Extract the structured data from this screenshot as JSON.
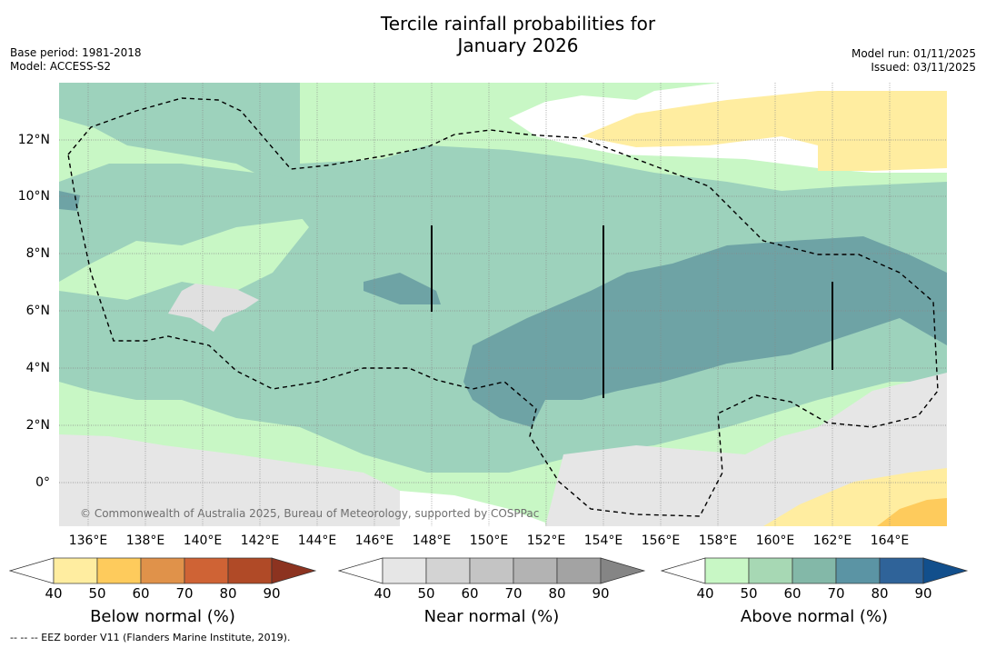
{
  "title_line1": "Tercile rainfall probabilities for",
  "title_line2": "January 2026",
  "base_period": "Base period: 1981-2018",
  "model": "Model: ACCESS-S2",
  "model_run": "Model run: 01/11/2025",
  "issued": "Issued: 03/11/2025",
  "copyright": "© Commonwealth of Australia 2025, Bureau of Meteorology, supported by COSPPac",
  "footnote": "--  --  -- EEZ border V11 (Flanders Marine Institute, 2019).",
  "lat_labels": [
    "12°N",
    "10°N",
    "8°N",
    "6°N",
    "4°N",
    "2°N",
    "0°"
  ],
  "lon_labels": [
    "136°E",
    "138°E",
    "140°E",
    "142°E",
    "144°E",
    "146°E",
    "148°E",
    "150°E",
    "152°E",
    "154°E",
    "156°E",
    "158°E",
    "160°E",
    "162°E",
    "164°E"
  ],
  "legends": {
    "below": {
      "title": "Below normal (%)",
      "ticks": [
        "40",
        "50",
        "60",
        "70",
        "80",
        "90"
      ],
      "colors": [
        "#ffffff",
        "#ffeda0",
        "#fecb5c",
        "#e0924a",
        "#cf6335",
        "#b04a27",
        "#8c3320"
      ]
    },
    "near": {
      "title": "Near normal (%)",
      "ticks": [
        "40",
        "50",
        "60",
        "70",
        "80",
        "90"
      ],
      "colors": [
        "#ffffff",
        "#e6e6e6",
        "#d3d3d3",
        "#c4c4c4",
        "#b3b3b3",
        "#a3a3a3",
        "#858585"
      ]
    },
    "above": {
      "title": "Above normal (%)",
      "ticks": [
        "40",
        "50",
        "60",
        "70",
        "80",
        "90"
      ],
      "colors": [
        "#ffffff",
        "#c8f7c5",
        "#a7d8b4",
        "#83b8a8",
        "#5b94a4",
        "#2f6399",
        "#124f8c"
      ]
    }
  }
}
